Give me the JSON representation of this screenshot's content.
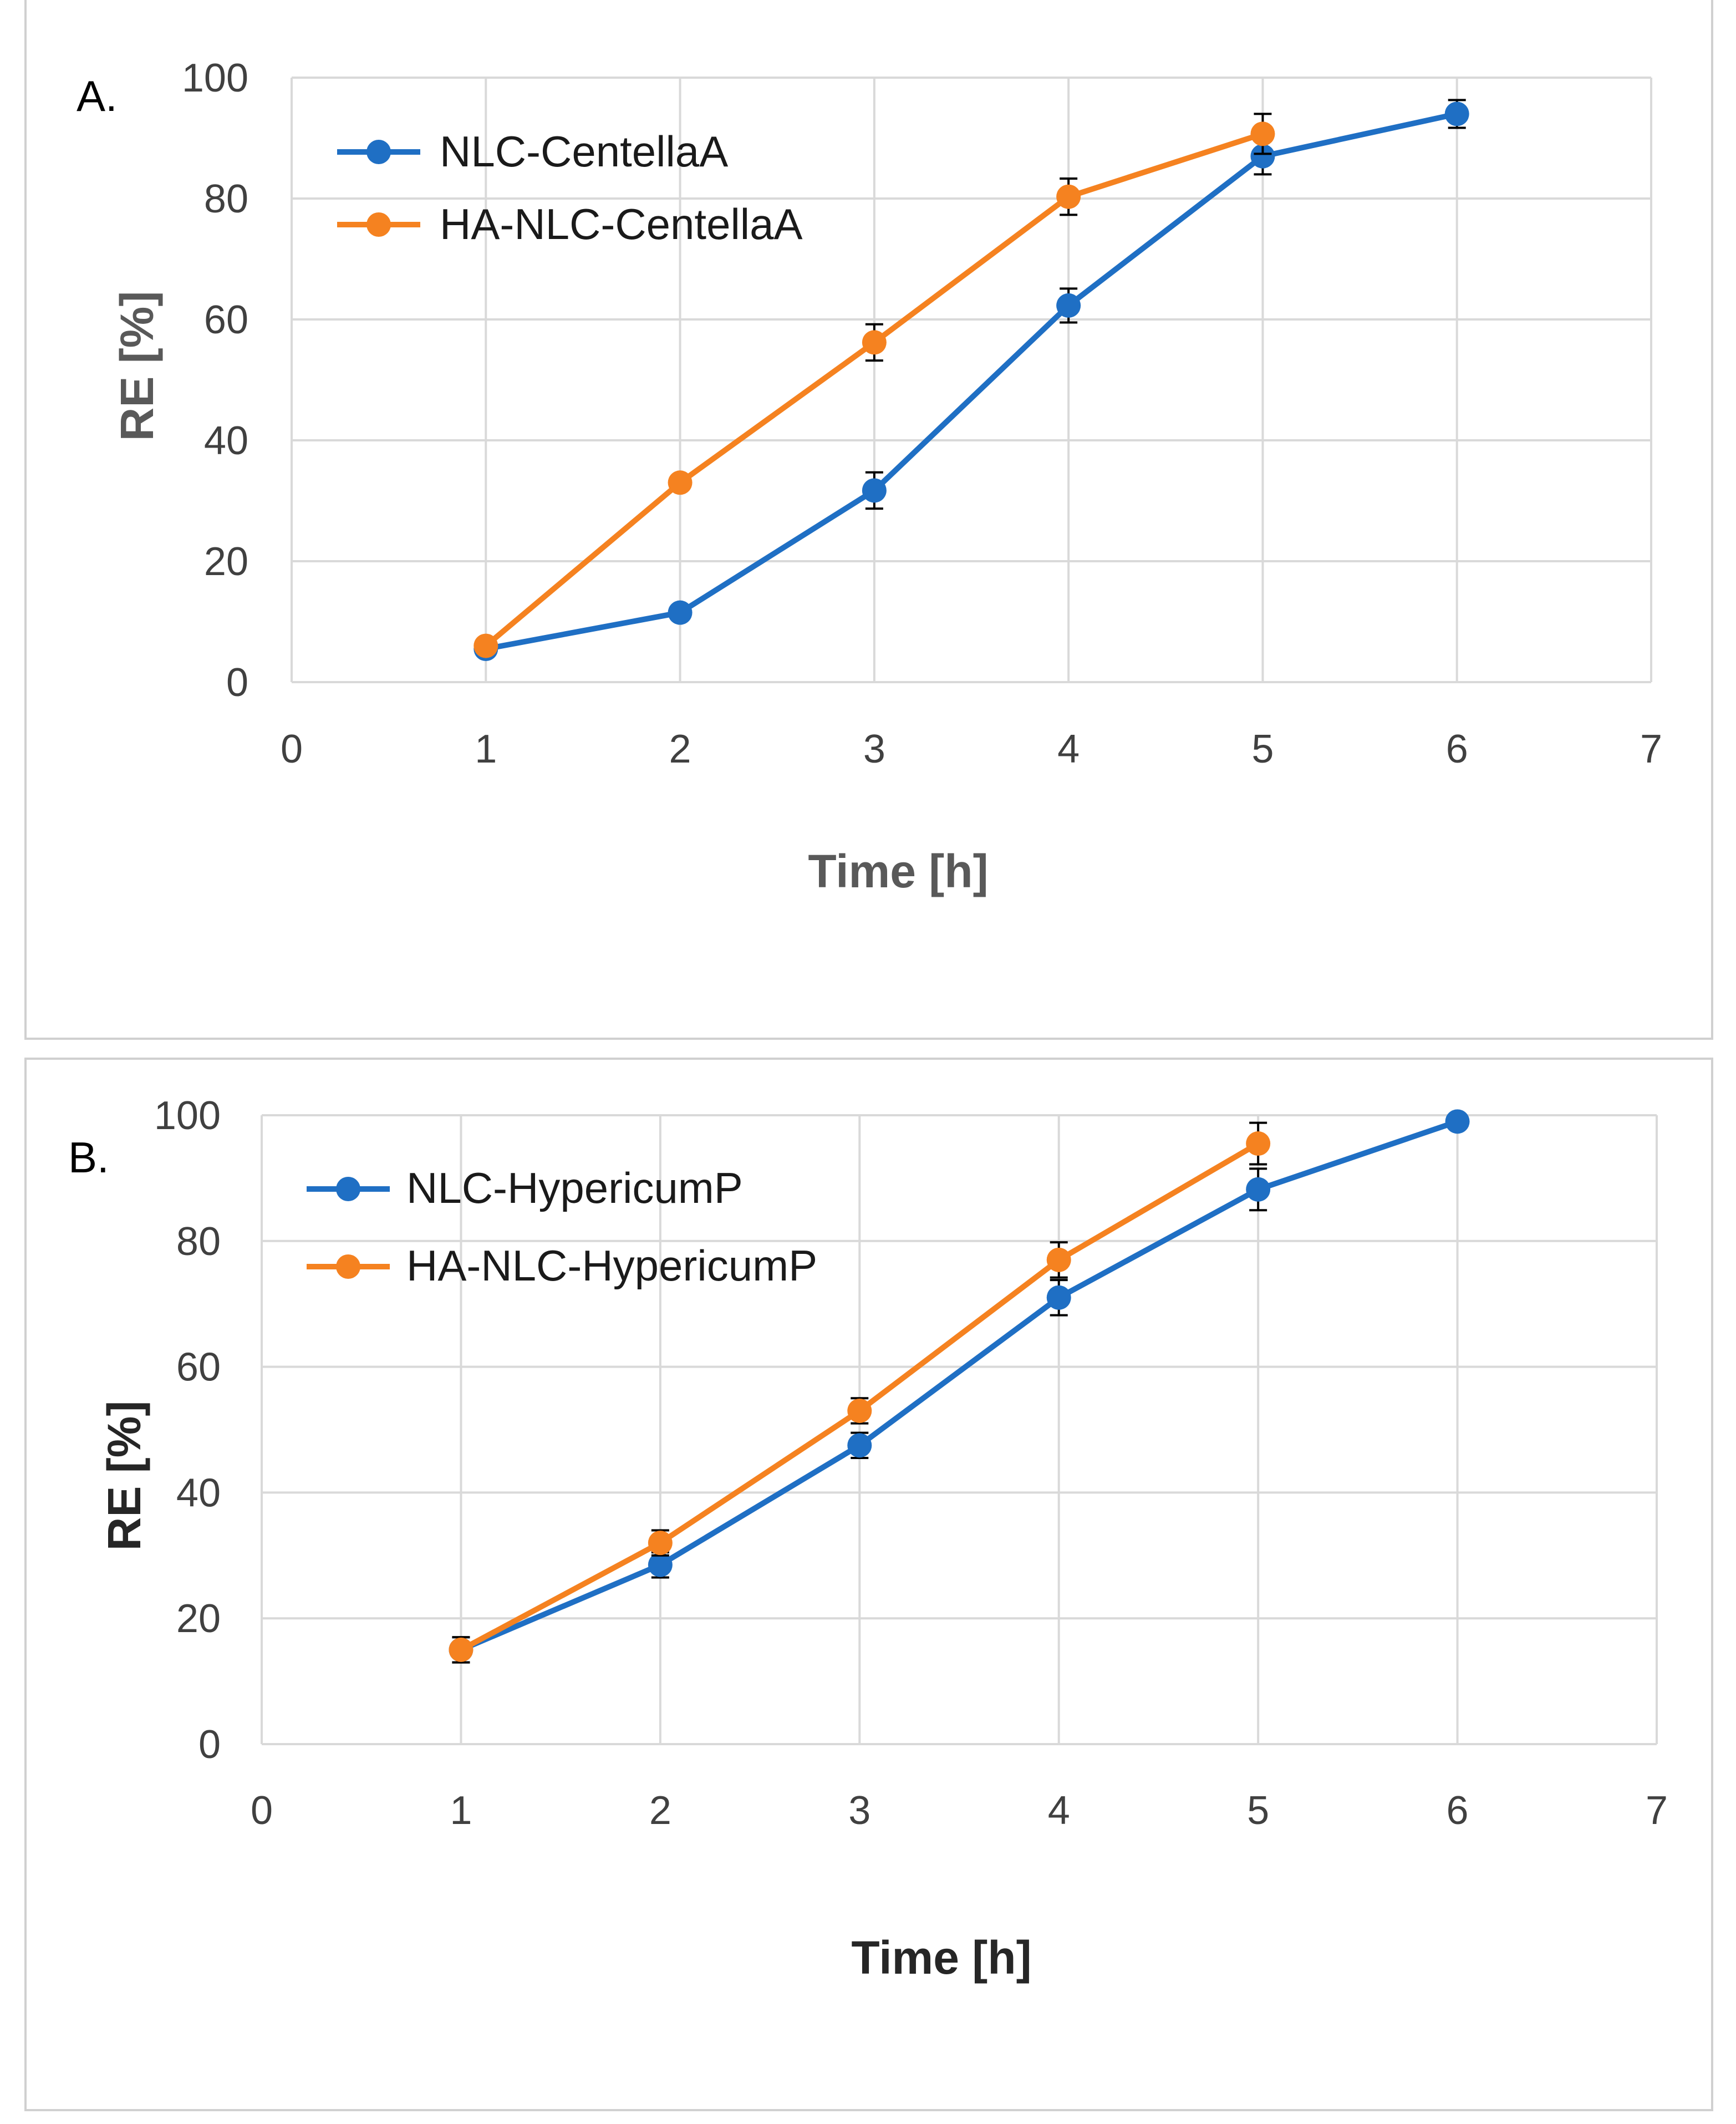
{
  "chart_data": [
    {
      "panel_label": "A.",
      "type": "line",
      "xlabel": "Time [h]",
      "ylabel": "RE [%]",
      "xlim": [
        0,
        7
      ],
      "ylim": [
        0,
        100
      ],
      "x_ticks": [
        "0",
        "1",
        "2",
        "3",
        "4",
        "5",
        "6",
        "7"
      ],
      "y_ticks": [
        "0",
        "20",
        "40",
        "60",
        "80",
        "100"
      ],
      "grid": true,
      "legend_position": "top-left",
      "axis_title_color": "#595959",
      "series": [
        {
          "name": "NLC-CentellaA",
          "color": "#1F6FC4",
          "x": [
            1,
            2,
            3,
            4,
            5,
            6
          ],
          "values": [
            5.5,
            11.5,
            31.7,
            62.3,
            87,
            94
          ],
          "error": [
            0,
            1.2,
            3.0,
            2.8,
            3.0,
            2.3
          ]
        },
        {
          "name": "HA-NLC-CentellaA",
          "color": "#F58220",
          "x": [
            1,
            2,
            3,
            4,
            5
          ],
          "values": [
            6,
            33,
            56.2,
            80.3,
            90.7
          ],
          "error": [
            0,
            1.0,
            3.0,
            3.0,
            3.3
          ]
        }
      ]
    },
    {
      "panel_label": "B.",
      "type": "line",
      "xlabel": "Time [h]",
      "ylabel": "RE [%]",
      "xlim": [
        0,
        7
      ],
      "ylim": [
        0,
        100
      ],
      "x_ticks": [
        "0",
        "1",
        "2",
        "3",
        "4",
        "5",
        "6",
        "7"
      ],
      "y_ticks": [
        "0",
        "20",
        "40",
        "60",
        "80",
        "100"
      ],
      "grid": true,
      "legend_position": "top-left",
      "axis_title_color": "#262626",
      "series": [
        {
          "name": "NLC-HypericumP",
          "color": "#1F6FC4",
          "x": [
            1,
            2,
            3,
            4,
            5,
            6
          ],
          "values": [
            15,
            28.5,
            47.5,
            71,
            88.2,
            99
          ],
          "error": [
            2.0,
            2.0,
            2.0,
            2.8,
            3.3,
            0
          ]
        },
        {
          "name": "HA-NLC-HypericumP",
          "color": "#F58220",
          "x": [
            1,
            2,
            3,
            4,
            5
          ],
          "values": [
            15,
            32,
            53,
            77,
            95.5
          ],
          "error": [
            2.0,
            2.0,
            2.0,
            2.8,
            3.3
          ]
        }
      ]
    }
  ]
}
